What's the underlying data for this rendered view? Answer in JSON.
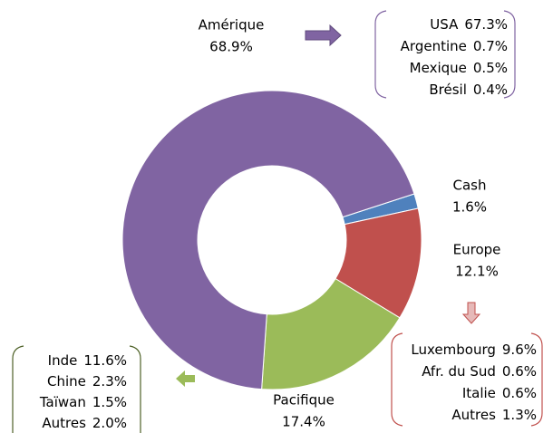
{
  "chart_data": {
    "type": "donut",
    "categories": [
      "Cash",
      "Europe",
      "Pacifique",
      "Amérique"
    ],
    "values": [
      1.6,
      12.1,
      17.4,
      68.9
    ],
    "value_labels": [
      "1.6%",
      "12.1%",
      "17.4%",
      "68.9%"
    ],
    "colors": [
      "#4f81bd",
      "#c0504d",
      "#9bbb59",
      "#8064a2"
    ],
    "breakdowns": {
      "amerique": [
        [
          "USA",
          "67.3%"
        ],
        [
          "Argentine",
          "0.7%"
        ],
        [
          "Mexique",
          "0.5%"
        ],
        [
          "Brésil",
          "0.4%"
        ]
      ],
      "europe": [
        [
          "Luxembourg",
          "9.6%"
        ],
        [
          "Afr. du Sud",
          "0.6%"
        ],
        [
          "Italie",
          "0.6%"
        ],
        [
          "Autres",
          "1.3%"
        ]
      ],
      "pacifique": [
        [
          "Inde",
          "11.6%"
        ],
        [
          "Chine",
          "2.3%"
        ],
        [
          "Taïwan",
          "1.5%"
        ],
        [
          "Autres",
          "2.0%"
        ]
      ]
    }
  }
}
